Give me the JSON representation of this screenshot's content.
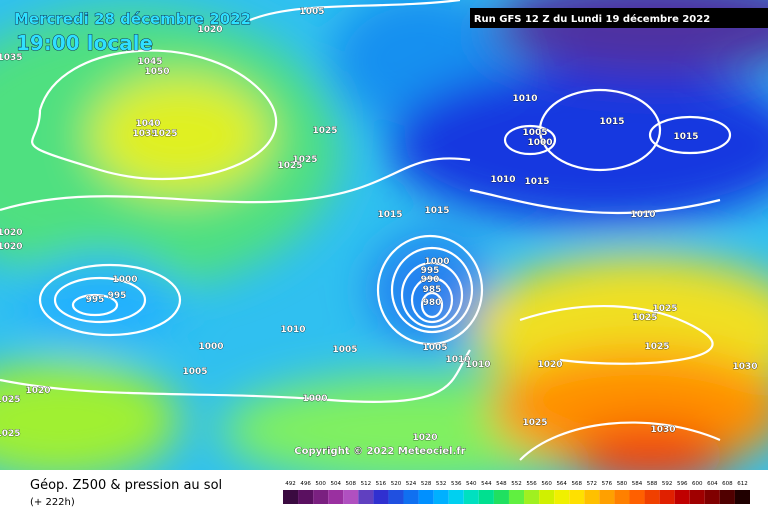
{
  "header": {
    "date": "Mercredi 28 décembre 2022",
    "time": "19:00 locale",
    "run": "Run GFS 12 Z du Lundi 19 décembre 2022"
  },
  "copyright": "Copyright © 2022 Meteociel.fr",
  "footer": {
    "title": "Géop. Z500 & pression au sol",
    "lead": "(+ 222h)"
  },
  "scale": {
    "values": [
      492,
      496,
      500,
      504,
      508,
      512,
      516,
      520,
      524,
      528,
      532,
      536,
      540,
      544,
      548,
      552,
      556,
      560,
      564,
      568,
      572,
      576,
      580,
      584,
      588,
      592,
      596,
      600,
      604,
      608,
      612
    ],
    "colors": [
      "#3a0a40",
      "#5a1060",
      "#7a2080",
      "#9a30a0",
      "#b050c0",
      "#6040c0",
      "#3030d0",
      "#2050e0",
      "#1070f0",
      "#0090ff",
      "#00b0ff",
      "#00d0f0",
      "#00e0c0",
      "#00e090",
      "#20e060",
      "#60f040",
      "#a0f020",
      "#d0f000",
      "#f0f000",
      "#ffe000",
      "#ffc000",
      "#ffa000",
      "#ff8000",
      "#ff6000",
      "#f04000",
      "#e02000",
      "#c00000",
      "#a00000",
      "#800000",
      "#500000",
      "#200000"
    ]
  },
  "isobar_labels": [
    1005,
    1020,
    1045,
    1050,
    1035,
    1040,
    1035,
    1025,
    1025,
    1025,
    1025,
    1010,
    1005,
    1000,
    1015,
    1015,
    1010,
    1015,
    1015,
    1015,
    1010,
    1020,
    1020,
    1000,
    995,
    990,
    985,
    980,
    1000,
    995,
    995,
    1010,
    1000,
    1005,
    1005,
    1005,
    1010,
    1010,
    1025,
    1025,
    1025,
    1020,
    1030,
    1020,
    1000,
    1025,
    1025,
    1025,
    1030,
    1020
  ]
}
